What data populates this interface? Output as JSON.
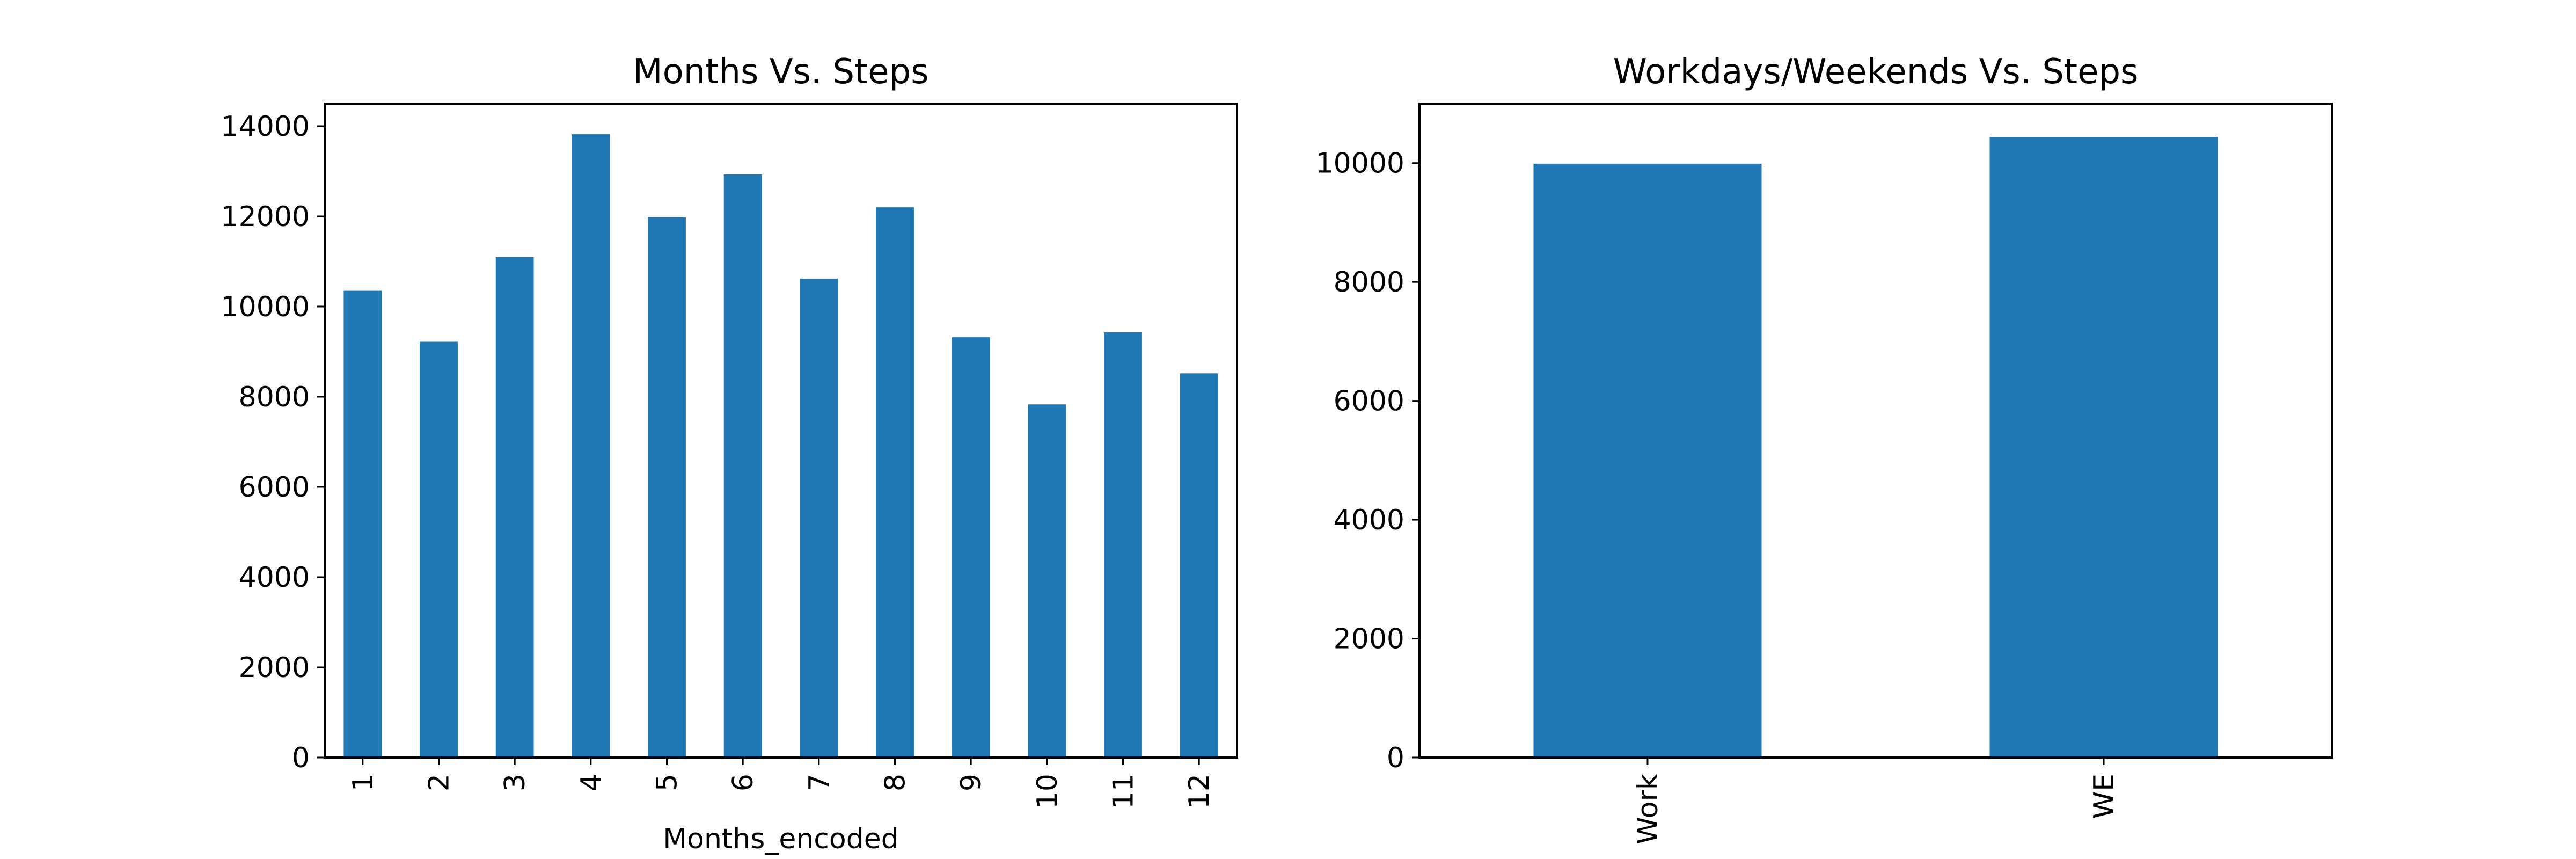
{
  "colors": {
    "bar": "#1f77b4",
    "axis": "#000000",
    "background": "#ffffff"
  },
  "chart_data": [
    {
      "type": "bar",
      "title": "Months Vs. Steps",
      "xlabel": "Months_encoded",
      "ylabel": "",
      "categories": [
        "1",
        "2",
        "3",
        "4",
        "5",
        "6",
        "7",
        "8",
        "9",
        "10",
        "11",
        "12"
      ],
      "values": [
        10350,
        9220,
        11100,
        13820,
        11980,
        12930,
        10620,
        12200,
        9320,
        7830,
        9430,
        8520
      ],
      "ylim": [
        0,
        14500
      ],
      "yticks": [
        "0",
        "2000",
        "4000",
        "6000",
        "8000",
        "10000",
        "12000",
        "14000"
      ],
      "xtick_rotation": "vertical",
      "grid": false,
      "legend": "none"
    },
    {
      "type": "bar",
      "title": "Workdays/Weekends Vs. Steps",
      "xlabel": "",
      "ylabel": "",
      "categories": [
        "Work",
        "WE"
      ],
      "values": [
        9990,
        10440
      ],
      "ylim": [
        0,
        11000
      ],
      "yticks": [
        "0",
        "2000",
        "4000",
        "6000",
        "8000",
        "10000"
      ],
      "xtick_rotation": "vertical",
      "grid": false,
      "legend": "none"
    }
  ]
}
